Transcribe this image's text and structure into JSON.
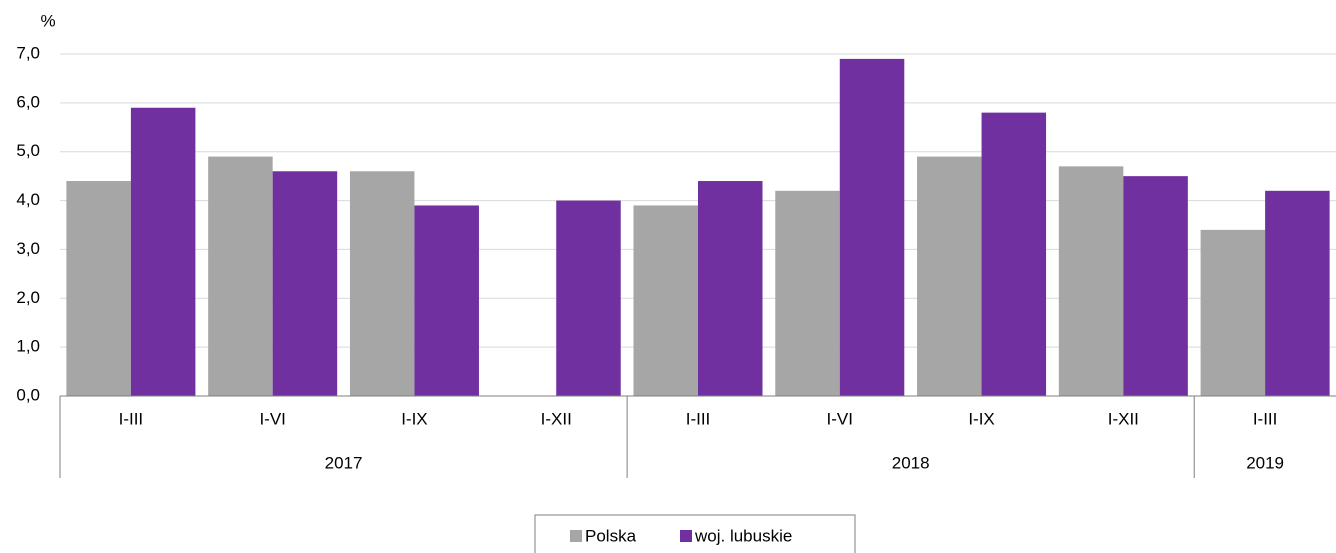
{
  "chart_data": {
    "type": "bar",
    "y_unit": "%",
    "categories": [
      "I-III",
      "I-VI",
      "I-IX",
      "I-XII",
      "I-III",
      "I-VI",
      "I-IX",
      "I-XII",
      "I-III"
    ],
    "groups": [
      {
        "label": "2017",
        "span": 4
      },
      {
        "label": "2018",
        "span": 4
      },
      {
        "label": "2019",
        "span": 1
      }
    ],
    "series": [
      {
        "name": "Polska",
        "color": "#a6a6a6",
        "values": [
          4.4,
          4.9,
          4.6,
          null,
          3.9,
          4.2,
          4.9,
          4.7,
          3.4
        ]
      },
      {
        "name": "woj. lubuskie",
        "color": "#7030a0",
        "values": [
          5.9,
          4.6,
          3.9,
          4.0,
          4.4,
          6.9,
          5.8,
          4.5,
          4.2
        ]
      }
    ],
    "ylim": [
      0,
      7
    ],
    "yticks": [
      {
        "value": 0,
        "label": "0,0"
      },
      {
        "value": 1,
        "label": "1,0"
      },
      {
        "value": 2,
        "label": "2,0"
      },
      {
        "value": 3,
        "label": "3,0"
      },
      {
        "value": 4,
        "label": "4,0"
      },
      {
        "value": 5,
        "label": "5,0"
      },
      {
        "value": 6,
        "label": "6,0"
      },
      {
        "value": 7,
        "label": "7,0"
      }
    ],
    "grid": true,
    "legend": "bottom"
  }
}
